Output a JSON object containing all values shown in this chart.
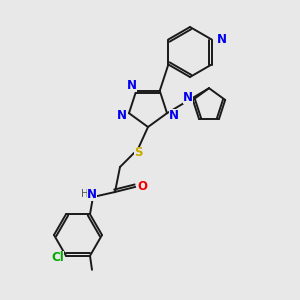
{
  "background_color": "#e8e8e8",
  "bond_color": "#1a1a1a",
  "atom_colors": {
    "N": "#0000ee",
    "O": "#ee0000",
    "S": "#ccaa00",
    "Cl": "#00aa00",
    "C": "#1a1a1a",
    "H": "#555555"
  },
  "figsize": [
    3.0,
    3.0
  ],
  "dpi": 100,
  "lw": 1.4,
  "fs": 8.5
}
